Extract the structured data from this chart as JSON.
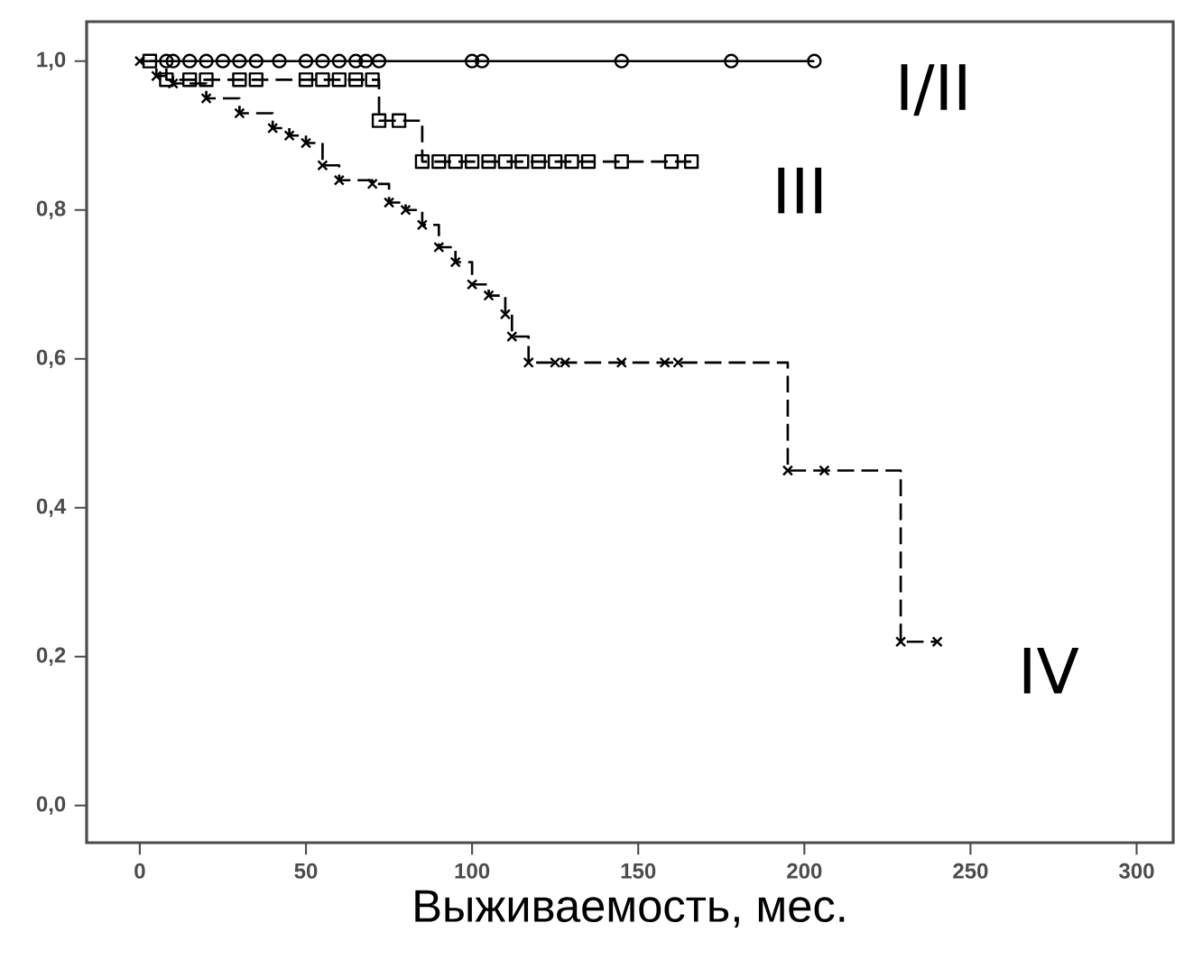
{
  "chart_data": {
    "type": "step",
    "xlabel": "Выживаемость, мес.",
    "xlim": [
      -16,
      311
    ],
    "ylim": [
      -0.05,
      1.053
    ],
    "xticks": [
      0,
      50,
      100,
      150,
      200,
      250,
      300
    ],
    "yticks": [
      {
        "value": 0.0,
        "label": "0,0"
      },
      {
        "value": 0.2,
        "label": "0,2"
      },
      {
        "value": 0.4,
        "label": "0,4"
      },
      {
        "value": 0.6,
        "label": "0,6"
      },
      {
        "value": 0.8,
        "label": "0,8"
      },
      {
        "value": 1.0,
        "label": "1,0"
      }
    ],
    "grid": false,
    "legend": false,
    "series": [
      {
        "name": "I/II",
        "color": "#000000",
        "marker": "circle",
        "line_style": "solid",
        "x": [
          8,
          10,
          15,
          20,
          25,
          30,
          35,
          42,
          50,
          55,
          60,
          65,
          68,
          72,
          100,
          103,
          145,
          178,
          203
        ],
        "values": [
          1.0,
          1.0,
          1.0,
          1.0,
          1.0,
          1.0,
          1.0,
          1.0,
          1.0,
          1.0,
          1.0,
          1.0,
          1.0,
          1.0,
          1.0,
          1.0,
          1.0,
          1.0,
          1.0
        ]
      },
      {
        "name": "III",
        "color": "#000000",
        "marker": "square",
        "line_style": "dashed",
        "x": [
          3,
          8,
          15,
          20,
          30,
          35,
          50,
          55,
          60,
          65,
          70,
          72,
          78,
          85,
          90,
          95,
          100,
          105,
          110,
          115,
          120,
          125,
          130,
          135,
          145,
          160,
          166
        ],
        "values": [
          1.0,
          0.975,
          0.975,
          0.975,
          0.975,
          0.975,
          0.975,
          0.975,
          0.975,
          0.975,
          0.975,
          0.92,
          0.92,
          0.865,
          0.865,
          0.865,
          0.865,
          0.865,
          0.865,
          0.865,
          0.865,
          0.865,
          0.865,
          0.865,
          0.865,
          0.865,
          0.865
        ]
      },
      {
        "name": "IV",
        "color": "#000000",
        "marker": "cross",
        "line_style": "dashed",
        "x": [
          0,
          5,
          10,
          20,
          30,
          40,
          45,
          50,
          55,
          60,
          70,
          75,
          80,
          85,
          90,
          95,
          100,
          105,
          110,
          112,
          117,
          125,
          128,
          145,
          158,
          162,
          195,
          206,
          229,
          240
        ],
        "values": [
          1.0,
          0.98,
          0.97,
          0.95,
          0.93,
          0.91,
          0.9,
          0.89,
          0.86,
          0.84,
          0.835,
          0.81,
          0.8,
          0.78,
          0.75,
          0.73,
          0.7,
          0.685,
          0.66,
          0.63,
          0.595,
          0.595,
          0.595,
          0.595,
          0.595,
          0.595,
          0.45,
          0.45,
          0.22,
          0.22
        ]
      }
    ]
  }
}
